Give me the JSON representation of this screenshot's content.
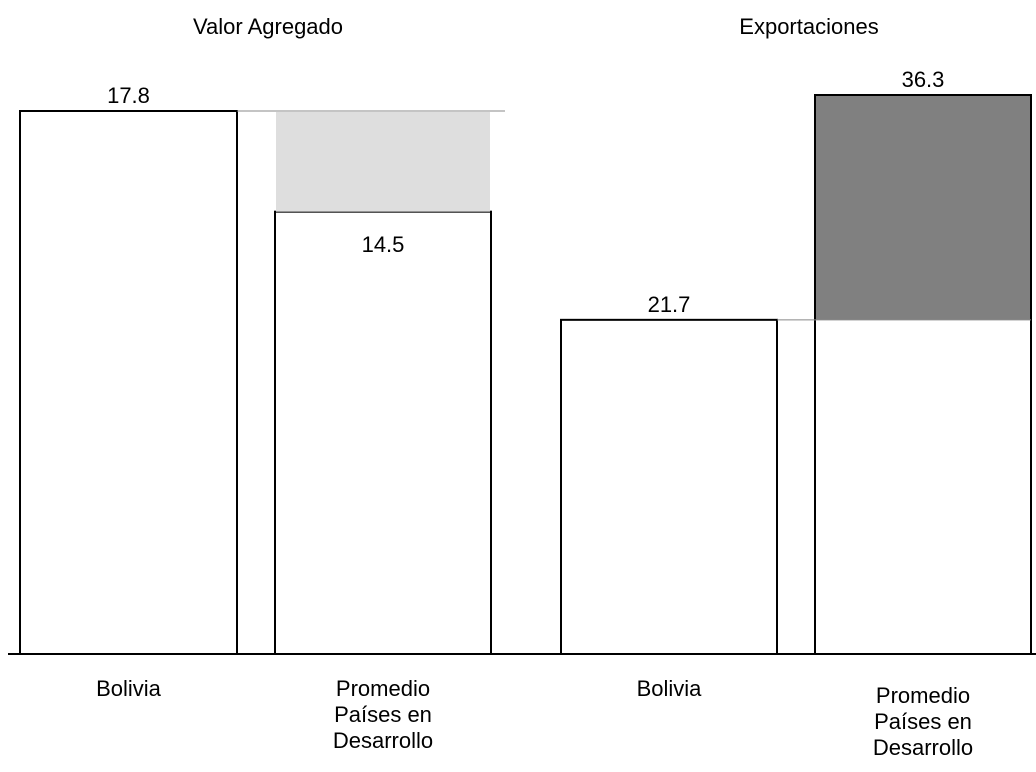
{
  "chart_data": [
    {
      "type": "bar",
      "title": "Valor Agregado",
      "categories": [
        "Bolivia",
        "Promedio Países en Desarrollo"
      ],
      "values": [
        17.8,
        14.5
      ],
      "color": "#ffffff",
      "gap_color": "#dedede"
    },
    {
      "type": "bar",
      "title": "Exportaciones",
      "categories": [
        "Bolivia",
        "Promedio Países en Desarrollo"
      ],
      "values": [
        21.7,
        36.3
      ],
      "color": "#ffffff",
      "gap_color": "#808080"
    }
  ]
}
